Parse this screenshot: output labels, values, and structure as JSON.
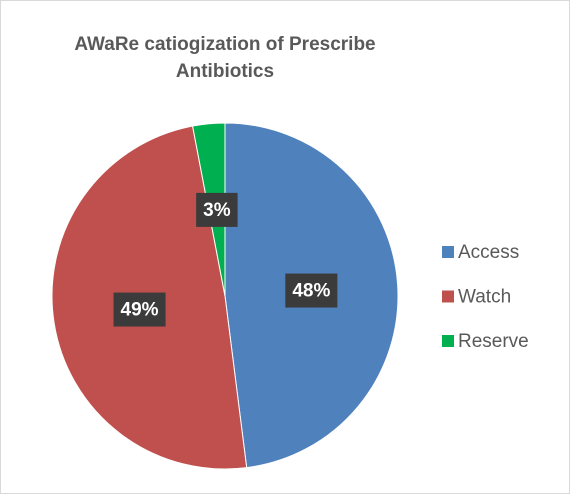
{
  "chart_data": {
    "type": "pie",
    "title": "AWaRe catiogization of Prescribe Antibiotics",
    "categories": [
      "Access",
      "Watch",
      "Reserve"
    ],
    "values": [
      48,
      49,
      3
    ],
    "value_labels": [
      "48%",
      "49%",
      "3%"
    ],
    "colors": [
      "#4f81bd",
      "#c0504d",
      "#00b050"
    ],
    "legend": "right"
  }
}
